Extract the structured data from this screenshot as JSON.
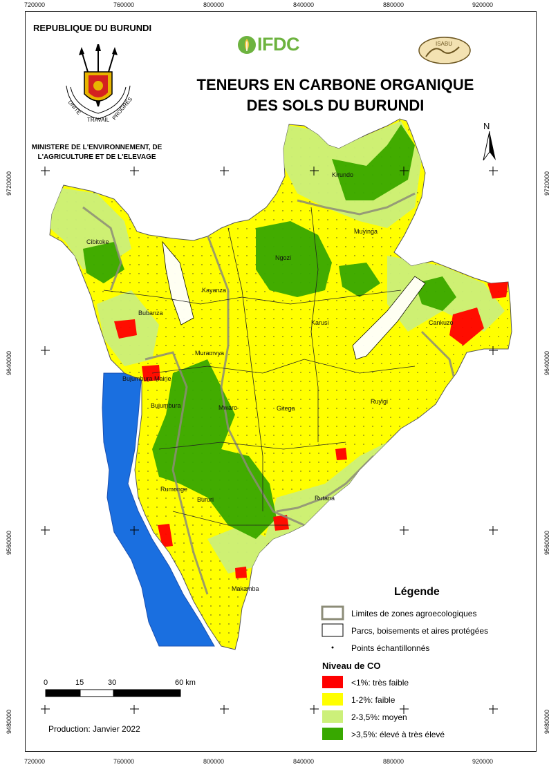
{
  "header": {
    "country": "REPUBLIQUE DU BURUNDI",
    "ministry_line1": "MINISTERE DE L'ENVIRONNEMENT, DE",
    "ministry_line2": "L'AGRICULTURE ET DE L'ELEVAGE",
    "title_line1": "TENEURS EN CARBONE ORGANIQUE",
    "title_line2": "DES SOLS DU BURUNDI",
    "ifdc_logo_text": "IFDC",
    "isabu_logo_text": "ISABU",
    "coat_of_arms_motto": [
      "UNITE",
      "TRAVAIL",
      "PROGRES"
    ]
  },
  "grid": {
    "x_ticks": [
      "720000",
      "760000",
      "800000",
      "840000",
      "880000",
      "920000"
    ],
    "y_ticks": [
      "9720000",
      "9640000",
      "9560000",
      "9480000"
    ]
  },
  "north_arrow": {
    "label": "N"
  },
  "places": [
    "Kirundo",
    "Muyinga",
    "Cibitoke",
    "Ngozi",
    "Kayanza",
    "Bubanza",
    "Karusi",
    "Cankuzo",
    "Muramvya",
    "Bujumbura Mairie",
    "Bujumbura",
    "Mwaro",
    "Gitega",
    "Ruyigi",
    "Rumonge",
    "Bururi",
    "Rutana",
    "Makamba"
  ],
  "legend": {
    "title": "Légende",
    "items": [
      {
        "label": "Limites de zones agroecologiques",
        "kind": "outline-grey"
      },
      {
        "label": "Parcs, boisements et aires protégées",
        "kind": "outline-black"
      },
      {
        "label": "Points échantillonnés",
        "kind": "dot"
      }
    ],
    "co_title": "Niveau de CO",
    "classes": [
      {
        "label": "<1%: très faible",
        "color": "#ff0000"
      },
      {
        "label": "1-2%: faible",
        "color": "#ffff00"
      },
      {
        "label": "2-3,5%: moyen",
        "color": "#ccf07a"
      },
      {
        "label": ">3,5%: élevé à très élevé",
        "color": "#38a800"
      }
    ]
  },
  "scale_bar": {
    "labels": [
      "0",
      "15",
      "30",
      "60 km"
    ]
  },
  "footer": {
    "production": "Production: Janvier 2022"
  },
  "colors": {
    "lake": "#1a6fe0",
    "boundary_grey": "#8c8c78",
    "park": "#ffffff"
  }
}
